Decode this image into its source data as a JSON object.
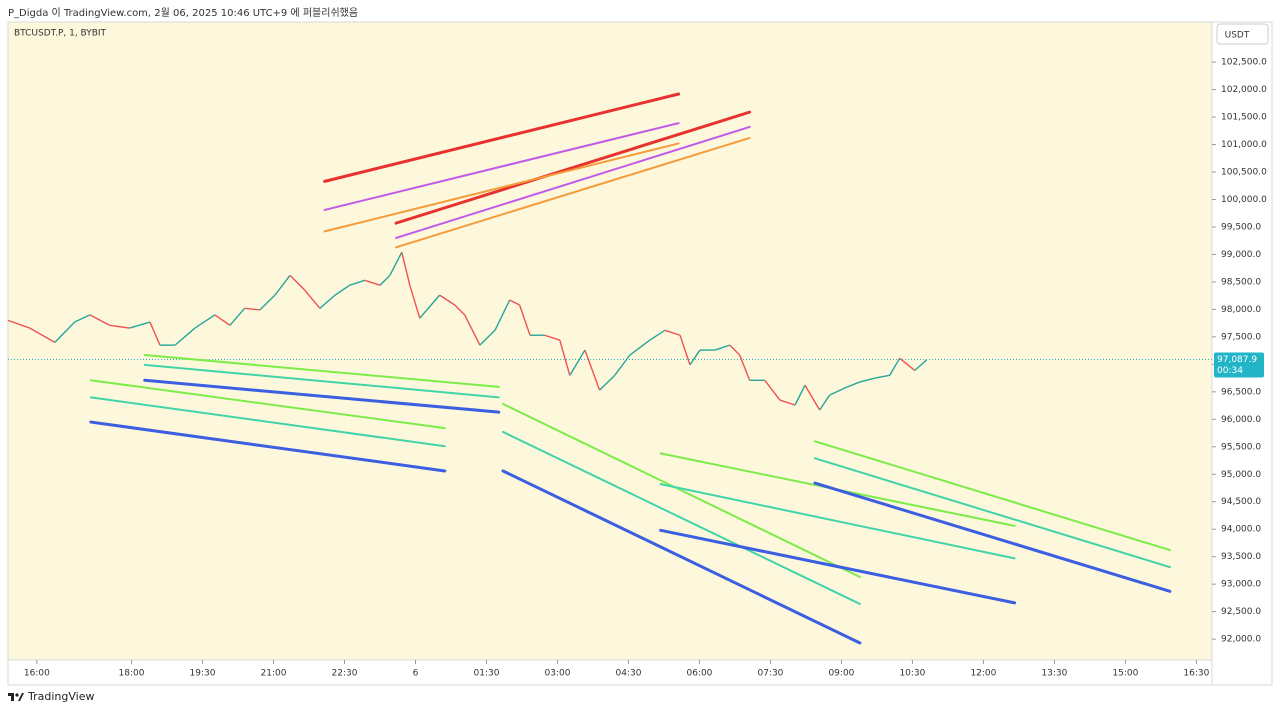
{
  "header": {
    "text": "P_Digda 이 TradingView.com, 2월 06, 2025 10:46 UTC+9 에 퍼블리쉬했음"
  },
  "chart_data": {
    "type": "line",
    "symbol": "BTCUSDT.P, 1, BYBIT",
    "currency": "USDT",
    "up_color": "#26a69a",
    "down_color": "#ef5350",
    "x": [
      -0.61,
      -0.15,
      0.38,
      0.8,
      1.12,
      1.54,
      1.96,
      2.39,
      2.6,
      2.92,
      3.34,
      3.76,
      4.08,
      4.39,
      4.71,
      5.03,
      5.35,
      5.66,
      5.98,
      6.3,
      6.61,
      6.93,
      7.25,
      7.46,
      7.71,
      7.88,
      8.09,
      8.51,
      8.83,
      9.04,
      9.36,
      9.68,
      9.99,
      10.2,
      10.42,
      10.73,
      11.05,
      11.26,
      11.58,
      11.89,
      12.21,
      12.53,
      12.95,
      13.27,
      13.59,
      13.8,
      14.01,
      14.33,
      14.64,
      14.85,
      15.06,
      15.38,
      15.7,
      16.02,
      16.23,
      16.54,
      16.75,
      17.07,
      17.39,
      17.71,
      18.02,
      18.23,
      18.55,
      18.8
    ],
    "series": [
      {
        "values": [
          97800,
          97660,
          97400,
          97770,
          97900,
          97710,
          97660,
          97770,
          97350,
          97350,
          97660,
          97900,
          97710,
          98020,
          97990,
          98260,
          98620,
          98350,
          98020,
          98260,
          98440,
          98530,
          98440,
          98620,
          99040,
          98440,
          97840,
          98260,
          98080,
          97900,
          97350,
          97620,
          98170,
          98080,
          97530,
          97530,
          97440,
          96800,
          97260,
          96530,
          96800,
          97170,
          97440,
          97620,
          97530,
          96990,
          97260,
          97260,
          97350,
          97170,
          96710,
          96710,
          96350,
          96260,
          96620,
          96170,
          96440,
          96570,
          96680,
          96750,
          96800,
          97110,
          96890,
          97080
        ]
      }
    ],
    "xlim": [
      -0.61,
      24.83
    ],
    "ylim": [
      91620,
      103230
    ],
    "xticks": [
      {
        "value": 0,
        "label": "16:00"
      },
      {
        "value": 2,
        "label": "18:00"
      },
      {
        "value": 3.5,
        "label": "19:30"
      },
      {
        "value": 5,
        "label": "21:00"
      },
      {
        "value": 6.5,
        "label": "22:30"
      },
      {
        "value": 8,
        "label": "6"
      },
      {
        "value": 9.5,
        "label": "01:30"
      },
      {
        "value": 11,
        "label": "03:00"
      },
      {
        "value": 12.5,
        "label": "04:30"
      },
      {
        "value": 14,
        "label": "06:00"
      },
      {
        "value": 15.5,
        "label": "07:30"
      },
      {
        "value": 17,
        "label": "09:00"
      },
      {
        "value": 18.5,
        "label": "10:30"
      },
      {
        "value": 20,
        "label": "12:00"
      },
      {
        "value": 21.5,
        "label": "13:30"
      },
      {
        "value": 23,
        "label": "15:00"
      },
      {
        "value": 24.5,
        "label": "16:30"
      }
    ],
    "yticks": [
      {
        "value": 92000,
        "label": "92,000.0"
      },
      {
        "value": 92500,
        "label": "92,500.0"
      },
      {
        "value": 93000,
        "label": "93,000.0"
      },
      {
        "value": 93500,
        "label": "93,500.0"
      },
      {
        "value": 94000,
        "label": "94,000.0"
      },
      {
        "value": 94500,
        "label": "94,500.0"
      },
      {
        "value": 95000,
        "label": "95,000.0"
      },
      {
        "value": 95500,
        "label": "95,500.0"
      },
      {
        "value": 96000,
        "label": "96,000.0"
      },
      {
        "value": 96500,
        "label": "96,500.0"
      },
      {
        "value": 97000,
        "label": "97,000.0"
      },
      {
        "value": 97500,
        "label": "97,500.0"
      },
      {
        "value": 98000,
        "label": "98,000.0"
      },
      {
        "value": 98500,
        "label": "98,500.0"
      },
      {
        "value": 99000,
        "label": "99,000.0"
      },
      {
        "value": 99500,
        "label": "99,500.0"
      },
      {
        "value": 100000,
        "label": "100,000.0"
      },
      {
        "value": 100500,
        "label": "100,500.0"
      },
      {
        "value": 101000,
        "label": "101,000.0"
      },
      {
        "value": 101500,
        "label": "101,500.0"
      },
      {
        "value": 102000,
        "label": "102,000.0"
      },
      {
        "value": 102500,
        "label": "102,500.0"
      }
    ],
    "last_price": {
      "value": 97087.9,
      "label": "97,087.9"
    },
    "countdown": "00:34",
    "last_price_color": "#22b5c8",
    "drawings": [
      {
        "color": "#e8322e",
        "width": 3,
        "x": [
          6.08,
          13.56
        ],
        "y": [
          100330,
          101920
        ]
      },
      {
        "color": "#e8322e",
        "width": 3,
        "x": [
          7.59,
          15.06
        ],
        "y": [
          99570,
          101590
        ]
      },
      {
        "color": "#c15ae8",
        "width": 2,
        "x": [
          6.08,
          13.56
        ],
        "y": [
          99810,
          101390
        ]
      },
      {
        "color": "#c15ae8",
        "width": 2,
        "x": [
          7.59,
          15.06
        ],
        "y": [
          99300,
          101320
        ]
      },
      {
        "color": "#f59b3a",
        "width": 2,
        "x": [
          6.08,
          13.56
        ],
        "y": [
          99420,
          101020
        ]
      },
      {
        "color": "#f59b3a",
        "width": 2,
        "x": [
          7.59,
          15.06
        ],
        "y": [
          99130,
          101120
        ]
      },
      {
        "color": "#7cec48",
        "width": 2,
        "x": [
          2.28,
          9.76
        ],
        "y": [
          97170,
          96590
        ]
      },
      {
        "color": "#7cec48",
        "width": 2,
        "x": [
          1.14,
          8.62
        ],
        "y": [
          96710,
          95840
        ]
      },
      {
        "color": "#7cec48",
        "width": 2,
        "x": [
          9.85,
          17.39
        ],
        "y": [
          96280,
          93130
        ]
      },
      {
        "color": "#7cec48",
        "width": 2,
        "x": [
          13.18,
          20.66
        ],
        "y": [
          95380,
          94060
        ]
      },
      {
        "color": "#7cec48",
        "width": 2,
        "x": [
          16.44,
          23.94
        ],
        "y": [
          95600,
          93620
        ]
      },
      {
        "color": "#42d4a8",
        "width": 2,
        "x": [
          2.28,
          9.76
        ],
        "y": [
          96990,
          96400
        ]
      },
      {
        "color": "#42d4a8",
        "width": 2,
        "x": [
          1.14,
          8.62
        ],
        "y": [
          96400,
          95510
        ]
      },
      {
        "color": "#42d4a8",
        "width": 2,
        "x": [
          9.85,
          17.39
        ],
        "y": [
          95770,
          92640
        ]
      },
      {
        "color": "#42d4a8",
        "width": 2,
        "x": [
          13.18,
          20.66
        ],
        "y": [
          94820,
          93470
        ]
      },
      {
        "color": "#42d4a8",
        "width": 2,
        "x": [
          16.44,
          23.94
        ],
        "y": [
          95290,
          93310
        ]
      },
      {
        "color": "#3b5fe0",
        "width": 3,
        "x": [
          2.28,
          9.76
        ],
        "y": [
          96710,
          96130
        ]
      },
      {
        "color": "#3b5fe0",
        "width": 3,
        "x": [
          1.14,
          8.62
        ],
        "y": [
          95950,
          95060
        ]
      },
      {
        "color": "#3b5fe0",
        "width": 3,
        "x": [
          9.85,
          17.39
        ],
        "y": [
          95060,
          91930
        ]
      },
      {
        "color": "#3b5fe0",
        "width": 3,
        "x": [
          13.18,
          20.66
        ],
        "y": [
          93980,
          92660
        ]
      },
      {
        "color": "#3b5fe0",
        "width": 3,
        "x": [
          16.44,
          23.94
        ],
        "y": [
          94840,
          92870
        ]
      }
    ]
  },
  "footer": {
    "brand": "TradingView"
  }
}
